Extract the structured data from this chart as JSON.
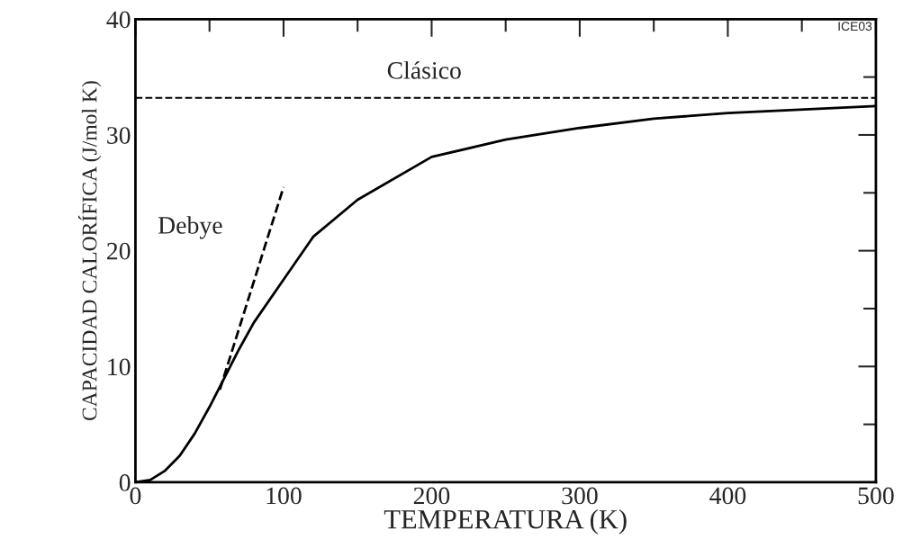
{
  "chart_data": {
    "type": "line",
    "xlabel": "TEMPERATURA (K)",
    "ylabel": "CAPACIDAD CALORÍFICA (J/mol K)",
    "xlim": [
      0,
      500
    ],
    "ylim": [
      0,
      40
    ],
    "xticks": [
      0,
      {
        "value": 50,
        "label": null
      },
      100,
      {
        "value": 150,
        "label": null
      },
      200,
      {
        "value": 250,
        "label": null
      },
      300,
      {
        "value": 350,
        "label": null
      },
      400,
      {
        "value": 450,
        "label": null
      },
      500
    ],
    "yticks": [
      0,
      {
        "value": 5,
        "label": null
      },
      10,
      {
        "value": 15,
        "label": null
      },
      20,
      {
        "value": 25,
        "label": null
      },
      30,
      {
        "value": 35,
        "label": null
      },
      40
    ],
    "series": [
      {
        "color": "#000000",
        "line_style": "solid",
        "x": [
          0,
          10,
          20,
          30,
          40,
          50,
          60,
          70,
          80,
          100,
          120,
          150,
          200,
          250,
          300,
          350,
          400,
          500
        ],
        "values": [
          0,
          0.2,
          1.0,
          2.3,
          4.2,
          6.5,
          9.0,
          11.5,
          13.8,
          17.5,
          21.2,
          24.4,
          28.1,
          29.6,
          30.6,
          31.4,
          31.9,
          32.5
        ]
      },
      {
        "name": "Debye",
        "color": "#000000",
        "line_style": "dashed",
        "x": [
          57,
          100
        ],
        "values": [
          8.0,
          25.5
        ]
      }
    ],
    "ref_lines": [
      {
        "axis": "y",
        "value": 33.2,
        "label": "Clásico",
        "color": "#000000",
        "line_style": "dashed"
      }
    ],
    "annotations": [
      "ICE03"
    ],
    "grid": false,
    "legend": false,
    "marker": "none"
  }
}
